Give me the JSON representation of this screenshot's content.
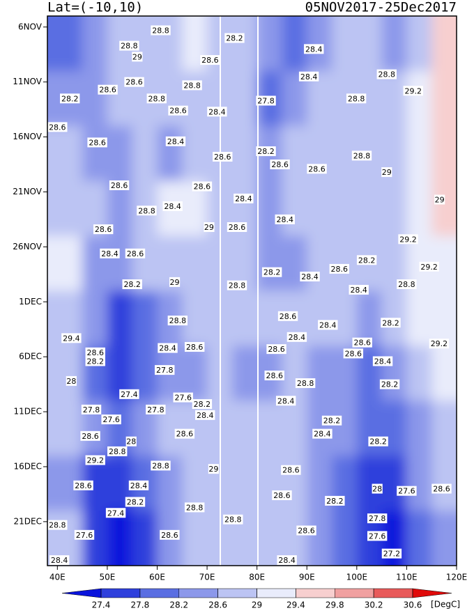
{
  "chart_data": {
    "type": "contour",
    "title": "Lat=(-10,10)",
    "subtitle": "05NOV2017-25Dec2017",
    "xlim": [
      38,
      120
    ],
    "xticks": [
      {
        "value": 40,
        "label": "40E"
      },
      {
        "value": 50,
        "label": "50E"
      },
      {
        "value": 60,
        "label": "60E"
      },
      {
        "value": 70,
        "label": "70E"
      },
      {
        "value": 80,
        "label": "80E"
      },
      {
        "value": 90,
        "label": "90E"
      },
      {
        "value": 100,
        "label": "100E"
      },
      {
        "value": 110,
        "label": "110E"
      },
      {
        "value": 120,
        "label": "120E"
      }
    ],
    "ylim": [
      0,
      50
    ],
    "yticks": [
      {
        "value": 1,
        "label": "6NOV"
      },
      {
        "value": 6,
        "label": "11NOV"
      },
      {
        "value": 11,
        "label": "16NOV"
      },
      {
        "value": 16,
        "label": "21NOV"
      },
      {
        "value": 21,
        "label": "26NOV"
      },
      {
        "value": 26,
        "label": "1DEC"
      },
      {
        "value": 31,
        "label": "6DEC"
      },
      {
        "value": 36,
        "label": "11DEC"
      },
      {
        "value": 41,
        "label": "16DEC"
      },
      {
        "value": 46,
        "label": "21DEC"
      }
    ],
    "field": {
      "x": [
        42.5,
        47.5,
        52.5,
        57.5,
        62.5,
        67.5,
        72.5,
        77.5,
        82.5,
        87.5,
        92.5,
        97.5,
        102.5,
        107.5,
        112.5,
        117.5
      ],
      "y": [
        2.5,
        7.5,
        12.5,
        17.5,
        22.5,
        27.5,
        32.5,
        37.5,
        42.5,
        47.5
      ],
      "values": [
        [
          27.8,
          28.2,
          28.6,
          28.6,
          28.8,
          29,
          28.8,
          28.6,
          28.2,
          27.8,
          28.4,
          28.6,
          28.6,
          28.4,
          28.8,
          29.4
        ],
        [
          28.2,
          28.4,
          28.6,
          28.6,
          28.6,
          28.8,
          28.6,
          28.6,
          28,
          28.4,
          28.6,
          28.6,
          28.6,
          28.6,
          29.2,
          29.4
        ],
        [
          28.6,
          28.4,
          28.4,
          28.6,
          28.4,
          28.6,
          28.8,
          28.6,
          28.4,
          28.6,
          28.6,
          28.8,
          28.8,
          28.8,
          29,
          29.4
        ],
        [
          28.6,
          28.6,
          28.4,
          28.8,
          29,
          29,
          28.8,
          28.6,
          28.4,
          28.6,
          28.6,
          28.8,
          28.6,
          28.8,
          29.2,
          29.4
        ],
        [
          29,
          28.4,
          28.2,
          28.6,
          28.8,
          28.8,
          28.6,
          28.6,
          28.4,
          28.4,
          28.6,
          28.8,
          28.6,
          28.8,
          29.2,
          29.2
        ],
        [
          28.8,
          28.2,
          27.6,
          27.8,
          28.4,
          28.6,
          28.6,
          28.6,
          28.6,
          28.6,
          28.6,
          28.6,
          28.4,
          28.6,
          29,
          29.2
        ],
        [
          28.6,
          27.8,
          27.4,
          27.8,
          28.2,
          28.4,
          28.6,
          28.4,
          28.4,
          28.6,
          28.4,
          28.2,
          28,
          28.4,
          28.8,
          29
        ],
        [
          28.8,
          28.2,
          28,
          28.2,
          28.6,
          28.8,
          28.8,
          28.6,
          28.6,
          28.6,
          28.4,
          28.2,
          27.8,
          27.8,
          28.4,
          28.8
        ],
        [
          28.4,
          27.6,
          27.4,
          27.8,
          28.4,
          28.6,
          28.6,
          28.6,
          28.6,
          28.6,
          28.4,
          28,
          27.6,
          27.4,
          28.2,
          28.6
        ],
        [
          28.6,
          27.6,
          27.2,
          27.6,
          28.2,
          28.6,
          28.6,
          28.6,
          28.8,
          28.6,
          28.4,
          28,
          27.4,
          27.2,
          28,
          28.4
        ]
      ]
    },
    "labels": {
      "x": [
        60.7,
        75.5,
        91.4,
        54.4,
        56,
        70.6,
        55.4,
        67,
        50.1,
        42.5,
        59.9,
        81.8,
        90.4,
        99.9,
        106,
        111.3,
        64.2,
        72,
        40,
        48,
        63.7,
        73.1,
        81.8,
        84.6,
        92,
        101,
        106,
        52.4,
        69,
        77.3,
        85.6,
        63.1,
        57.9,
        70.4,
        76,
        49.2,
        55.6,
        50.5,
        110.3,
        116.6,
        102,
        96.5,
        83,
        90.6,
        55,
        63.5,
        76,
        100.4,
        110,
        114.5,
        64.1,
        86.2,
        94.2,
        106.8,
        42.8,
        62.1,
        67.5,
        88,
        101.1,
        116.5,
        47.6,
        47.6,
        61.5,
        42.8,
        83.9,
        99.3,
        105.2,
        83.5,
        89.7,
        54.4,
        65.2,
        106.6,
        46.8,
        59.7,
        69,
        69.6,
        85.8,
        50.8,
        95,
        46.6,
        65.5,
        93.1,
        104.3,
        54.8,
        52,
        47.6,
        60.7,
        86.8,
        71.3,
        45.2,
        56.3,
        55.6,
        67.5,
        85,
        95.6,
        104.1,
        110,
        117,
        40,
        75.2,
        89.9,
        104.1,
        45.4,
        62.5,
        104.1,
        107,
        40.4,
        86,
        51.7
      ],
      "y": [
        1.3,
        2,
        3,
        2.7,
        3.7,
        4,
        6,
        6.3,
        6.7,
        7.5,
        7.5,
        7.7,
        5.5,
        7.5,
        5.3,
        6.8,
        8.6,
        8.7,
        10.1,
        11.5,
        11.4,
        12.8,
        12.3,
        13.5,
        13.9,
        12.7,
        14.2,
        15.4,
        15.5,
        16.6,
        18.5,
        17.3,
        17.7,
        19.2,
        19.2,
        19.4,
        21.6,
        21.6,
        20.3,
        16.7,
        22.2,
        23,
        23.3,
        23.7,
        24.4,
        24.2,
        24.5,
        24.9,
        24.4,
        22.8,
        27.7,
        27.3,
        28.1,
        27.9,
        29.3,
        30.2,
        30.1,
        29.2,
        29.7,
        29.8,
        30.6,
        31.4,
        32.2,
        33.2,
        30.3,
        30.7,
        31.4,
        32.7,
        33.4,
        34.4,
        34.7,
        33.5,
        35.8,
        35.8,
        35.3,
        36.3,
        35,
        36.7,
        36.8,
        38.2,
        38,
        38,
        38.7,
        38.7,
        39.6,
        40.4,
        40.9,
        41.3,
        41.2,
        42.7,
        42.7,
        44.2,
        44.7,
        43.6,
        44.1,
        43,
        43.2,
        43,
        46.3,
        45.8,
        46.8,
        45.7,
        47.2,
        47.2,
        47.3,
        48.9,
        49.5,
        49.5,
        45.2
      ],
      "values": [
        28.8,
        28.2,
        28.4,
        28.8,
        29,
        28.6,
        28.6,
        28.8,
        28.6,
        28.2,
        28.8,
        27.8,
        28.4,
        28.8,
        28.8,
        29.2,
        28.6,
        28.4,
        28.6,
        28.6,
        28.4,
        28.6,
        28.2,
        28.6,
        28.6,
        28.8,
        29,
        28.6,
        28.6,
        28.4,
        28.4,
        28.4,
        28.8,
        29,
        28.6,
        28.6,
        28.6,
        28.4,
        29.2,
        29,
        28.2,
        28.6,
        28.2,
        28.4,
        28.2,
        29,
        28.8,
        28.4,
        28.8,
        29.2,
        28.8,
        28.6,
        28.4,
        28.2,
        29.4,
        28.4,
        28.6,
        28.4,
        28.6,
        29.2,
        28.6,
        28.2,
        27.8,
        28,
        28.6,
        28.6,
        28.4,
        28.6,
        28.8,
        27.4,
        27.6,
        28.2,
        27.8,
        27.8,
        28.2,
        28.4,
        28.4,
        27.6,
        28.2,
        28.6,
        28.6,
        28.4,
        28.2,
        28,
        28.8,
        29.2,
        28.8,
        28.6,
        29,
        28.6,
        28.4,
        28.2,
        28.8,
        28.6,
        28.2,
        28,
        27.6,
        28.6,
        28.8,
        28.8,
        28.6,
        27.8,
        27.6,
        28.6,
        27.6,
        27.2,
        28.4,
        28.4,
        27.4
      ]
    },
    "colorbar": {
      "levels": [
        27.4,
        27.8,
        28.2,
        28.6,
        29,
        29.4,
        29.8,
        30.2,
        30.6
      ],
      "colors": [
        "#0a14dc",
        "#2f40dc",
        "#5a6ee2",
        "#8c98ea",
        "#bcc4f3",
        "#e9ecfb",
        "#f7cfcf",
        "#f0a0a0",
        "#e85a5a",
        "#e00a0a"
      ],
      "unit": "[DegC]"
    }
  }
}
